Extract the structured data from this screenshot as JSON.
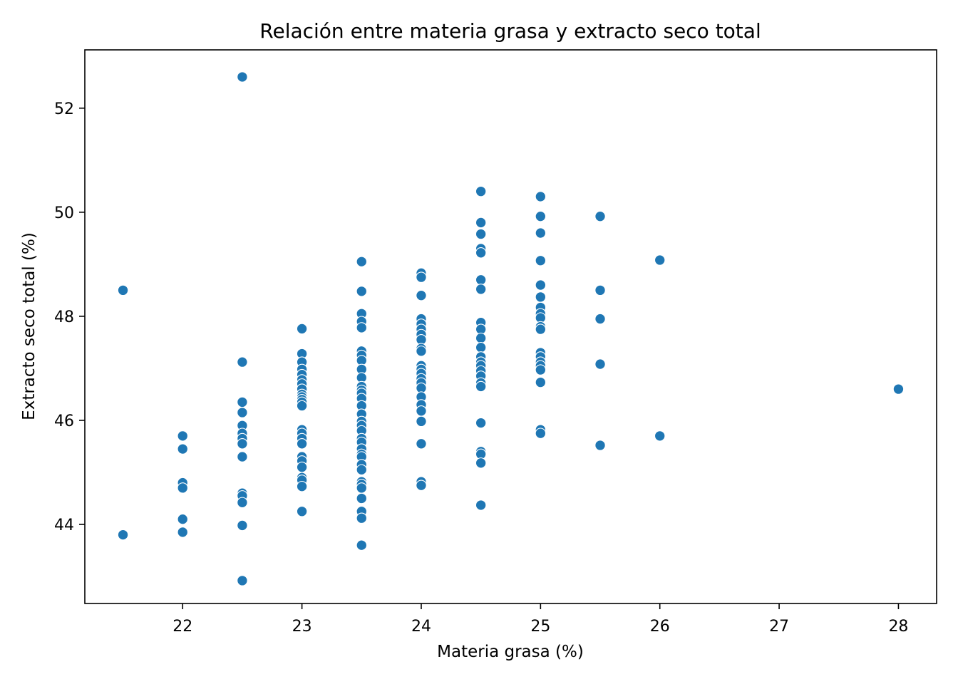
{
  "chart_data": {
    "type": "scatter",
    "title": "Relación entre materia grasa y extracto seco total",
    "xlabel": "Materia grasa (%)",
    "ylabel": "Extracto seco total (%)",
    "xlim": [
      21.18,
      28.32
    ],
    "ylim": [
      42.48,
      53.12
    ],
    "xticks": [
      22,
      23,
      24,
      25,
      26,
      27,
      28
    ],
    "yticks": [
      44,
      46,
      48,
      50,
      52
    ],
    "grid": false,
    "marker_color": "#1f77b4",
    "marker_edge_color": "#ffffff",
    "points": [
      {
        "x": 21.5,
        "y": 48.5
      },
      {
        "x": 21.5,
        "y": 43.8
      },
      {
        "x": 22,
        "y": 45.7
      },
      {
        "x": 22,
        "y": 45.45
      },
      {
        "x": 22,
        "y": 44.8
      },
      {
        "x": 22,
        "y": 44.7
      },
      {
        "x": 22,
        "y": 44.1
      },
      {
        "x": 22,
        "y": 43.85
      },
      {
        "x": 22.5,
        "y": 52.6
      },
      {
        "x": 22.5,
        "y": 47.12
      },
      {
        "x": 22.5,
        "y": 46.35
      },
      {
        "x": 22.5,
        "y": 46.15
      },
      {
        "x": 22.5,
        "y": 45.9
      },
      {
        "x": 22.5,
        "y": 45.75
      },
      {
        "x": 22.5,
        "y": 45.65
      },
      {
        "x": 22.5,
        "y": 45.55
      },
      {
        "x": 22.5,
        "y": 45.3
      },
      {
        "x": 22.5,
        "y": 44.6
      },
      {
        "x": 22.5,
        "y": 44.55
      },
      {
        "x": 22.5,
        "y": 44.42
      },
      {
        "x": 22.5,
        "y": 43.98
      },
      {
        "x": 22.5,
        "y": 42.92
      },
      {
        "x": 23,
        "y": 47.76
      },
      {
        "x": 23,
        "y": 47.28
      },
      {
        "x": 23,
        "y": 47.12
      },
      {
        "x": 23,
        "y": 46.98
      },
      {
        "x": 23,
        "y": 46.88
      },
      {
        "x": 23,
        "y": 46.78
      },
      {
        "x": 23,
        "y": 46.7
      },
      {
        "x": 23,
        "y": 46.6
      },
      {
        "x": 23,
        "y": 46.5
      },
      {
        "x": 23,
        "y": 46.45
      },
      {
        "x": 23,
        "y": 46.4
      },
      {
        "x": 23,
        "y": 46.35
      },
      {
        "x": 23,
        "y": 46.28
      },
      {
        "x": 23,
        "y": 45.82
      },
      {
        "x": 23,
        "y": 45.75
      },
      {
        "x": 23,
        "y": 45.65
      },
      {
        "x": 23,
        "y": 45.55
      },
      {
        "x": 23,
        "y": 45.3
      },
      {
        "x": 23,
        "y": 45.22
      },
      {
        "x": 23,
        "y": 45.1
      },
      {
        "x": 23,
        "y": 44.9
      },
      {
        "x": 23,
        "y": 44.85
      },
      {
        "x": 23,
        "y": 44.73
      },
      {
        "x": 23,
        "y": 44.25
      },
      {
        "x": 23.5,
        "y": 49.05
      },
      {
        "x": 23.5,
        "y": 48.48
      },
      {
        "x": 23.5,
        "y": 48.05
      },
      {
        "x": 23.5,
        "y": 47.9
      },
      {
        "x": 23.5,
        "y": 47.78
      },
      {
        "x": 23.5,
        "y": 47.33
      },
      {
        "x": 23.5,
        "y": 47.25
      },
      {
        "x": 23.5,
        "y": 47.15
      },
      {
        "x": 23.5,
        "y": 46.98
      },
      {
        "x": 23.5,
        "y": 46.82
      },
      {
        "x": 23.5,
        "y": 46.65
      },
      {
        "x": 23.5,
        "y": 46.58
      },
      {
        "x": 23.5,
        "y": 46.52
      },
      {
        "x": 23.5,
        "y": 46.42
      },
      {
        "x": 23.5,
        "y": 46.28
      },
      {
        "x": 23.5,
        "y": 46.12
      },
      {
        "x": 23.5,
        "y": 45.98
      },
      {
        "x": 23.5,
        "y": 45.9
      },
      {
        "x": 23.5,
        "y": 45.8
      },
      {
        "x": 23.5,
        "y": 45.65
      },
      {
        "x": 23.5,
        "y": 45.58
      },
      {
        "x": 23.5,
        "y": 45.45
      },
      {
        "x": 23.5,
        "y": 45.35
      },
      {
        "x": 23.5,
        "y": 45.3
      },
      {
        "x": 23.5,
        "y": 45.15
      },
      {
        "x": 23.5,
        "y": 45.05
      },
      {
        "x": 23.5,
        "y": 44.82
      },
      {
        "x": 23.5,
        "y": 44.77
      },
      {
        "x": 23.5,
        "y": 44.7
      },
      {
        "x": 23.5,
        "y": 44.5
      },
      {
        "x": 23.5,
        "y": 44.25
      },
      {
        "x": 23.5,
        "y": 44.12
      },
      {
        "x": 23.5,
        "y": 43.6
      },
      {
        "x": 24,
        "y": 48.83
      },
      {
        "x": 24,
        "y": 48.75
      },
      {
        "x": 24,
        "y": 48.4
      },
      {
        "x": 24,
        "y": 47.95
      },
      {
        "x": 24,
        "y": 47.85
      },
      {
        "x": 24,
        "y": 47.75
      },
      {
        "x": 24,
        "y": 47.65
      },
      {
        "x": 24,
        "y": 47.55
      },
      {
        "x": 24,
        "y": 47.38
      },
      {
        "x": 24,
        "y": 47.33
      },
      {
        "x": 24,
        "y": 47.05
      },
      {
        "x": 24,
        "y": 46.98
      },
      {
        "x": 24,
        "y": 46.9
      },
      {
        "x": 24,
        "y": 46.8
      },
      {
        "x": 24,
        "y": 46.72
      },
      {
        "x": 24,
        "y": 46.62
      },
      {
        "x": 24,
        "y": 46.45
      },
      {
        "x": 24,
        "y": 46.3
      },
      {
        "x": 24,
        "y": 46.18
      },
      {
        "x": 24,
        "y": 45.98
      },
      {
        "x": 24,
        "y": 45.55
      },
      {
        "x": 24,
        "y": 44.82
      },
      {
        "x": 24,
        "y": 44.75
      },
      {
        "x": 24.5,
        "y": 50.4
      },
      {
        "x": 24.5,
        "y": 49.8
      },
      {
        "x": 24.5,
        "y": 49.58
      },
      {
        "x": 24.5,
        "y": 49.3
      },
      {
        "x": 24.5,
        "y": 49.22
      },
      {
        "x": 24.5,
        "y": 48.7
      },
      {
        "x": 24.5,
        "y": 48.52
      },
      {
        "x": 24.5,
        "y": 47.88
      },
      {
        "x": 24.5,
        "y": 47.75
      },
      {
        "x": 24.5,
        "y": 47.58
      },
      {
        "x": 24.5,
        "y": 47.4
      },
      {
        "x": 24.5,
        "y": 47.22
      },
      {
        "x": 24.5,
        "y": 47.12
      },
      {
        "x": 24.5,
        "y": 47.05
      },
      {
        "x": 24.5,
        "y": 46.95
      },
      {
        "x": 24.5,
        "y": 46.85
      },
      {
        "x": 24.5,
        "y": 46.72
      },
      {
        "x": 24.5,
        "y": 46.65
      },
      {
        "x": 24.5,
        "y": 45.95
      },
      {
        "x": 24.5,
        "y": 45.4
      },
      {
        "x": 24.5,
        "y": 45.35
      },
      {
        "x": 24.5,
        "y": 45.18
      },
      {
        "x": 24.5,
        "y": 44.37
      },
      {
        "x": 25,
        "y": 50.3
      },
      {
        "x": 25,
        "y": 49.92
      },
      {
        "x": 25,
        "y": 49.6
      },
      {
        "x": 25,
        "y": 49.07
      },
      {
        "x": 25,
        "y": 48.6
      },
      {
        "x": 25,
        "y": 48.37
      },
      {
        "x": 25,
        "y": 48.17
      },
      {
        "x": 25,
        "y": 48.05
      },
      {
        "x": 25,
        "y": 47.97
      },
      {
        "x": 25,
        "y": 47.8
      },
      {
        "x": 25,
        "y": 47.75
      },
      {
        "x": 25,
        "y": 47.3
      },
      {
        "x": 25,
        "y": 47.22
      },
      {
        "x": 25,
        "y": 47.12
      },
      {
        "x": 25,
        "y": 47.05
      },
      {
        "x": 25,
        "y": 46.97
      },
      {
        "x": 25,
        "y": 46.73
      },
      {
        "x": 25,
        "y": 45.82
      },
      {
        "x": 25,
        "y": 45.75
      },
      {
        "x": 25.5,
        "y": 49.92
      },
      {
        "x": 25.5,
        "y": 48.5
      },
      {
        "x": 25.5,
        "y": 47.95
      },
      {
        "x": 25.5,
        "y": 47.08
      },
      {
        "x": 25.5,
        "y": 45.52
      },
      {
        "x": 26,
        "y": 49.08
      },
      {
        "x": 26,
        "y": 45.7
      },
      {
        "x": 28,
        "y": 46.6
      }
    ]
  }
}
